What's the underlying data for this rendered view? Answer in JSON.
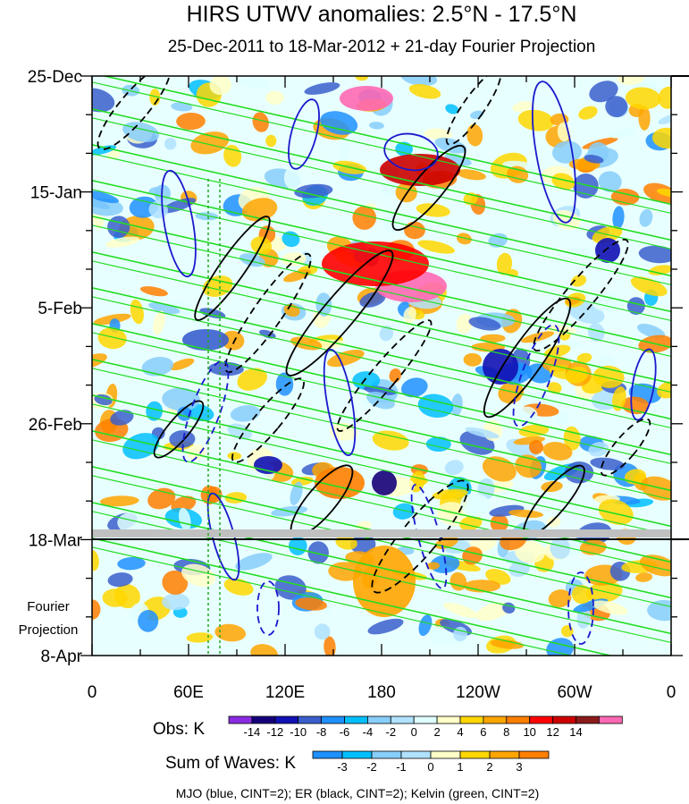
{
  "chart_data": {
    "type": "heatmap",
    "title": "HIRS UTWV anomalies: 2.5°N - 17.5°N",
    "subtitle": "25-Dec-2011 to 18-Mar-2012 + 21-day Fourier Projection",
    "x_ticks": [
      "0",
      "60E",
      "120E",
      "180",
      "120W",
      "60W",
      "0"
    ],
    "y_ticks": [
      "25-Dec",
      "15-Jan",
      "5-Feb",
      "26-Feb",
      "18-Mar",
      "8-Apr"
    ],
    "projection_label": [
      "Fourier",
      "Projection"
    ],
    "obs_legend": {
      "label": "Obs: K",
      "ticks": [
        "-14",
        "-12",
        "-10",
        "-8",
        "-6",
        "-4",
        "-2",
        "0",
        "2",
        "4",
        "6",
        "8",
        "10",
        "12",
        "14"
      ],
      "colors": [
        "#8a2be2",
        "#16007a",
        "#1111b4",
        "#3a5fcd",
        "#1e90ff",
        "#00bfff",
        "#87cefa",
        "#b0e2ff",
        "#e0ffff",
        "#ffffc8",
        "#ffd700",
        "#ffa500",
        "#ff7f00",
        "#ff0000",
        "#cd0000",
        "#8b1a1a",
        "#ff69b4"
      ]
    },
    "waves_legend": {
      "label": "Sum of Waves: K",
      "ticks": [
        "-3",
        "-2",
        "-1",
        "0",
        "1",
        "2",
        "3"
      ],
      "colors": [
        "#1e90ff",
        "#00bfff",
        "#87cefa",
        "#b0e2ff",
        "#ffffc8",
        "#ffd700",
        "#ffa500",
        "#ff7f00"
      ]
    },
    "footer": "MJO (blue, CINT=2); ER (black, CINT=2); Kelvin (green, CINT=2)",
    "series": [
      {
        "name": "MJO",
        "color": "#1a1acc"
      },
      {
        "name": "ER",
        "color": "#000000"
      },
      {
        "name": "Kelvin",
        "color": "#22dd22"
      }
    ]
  }
}
